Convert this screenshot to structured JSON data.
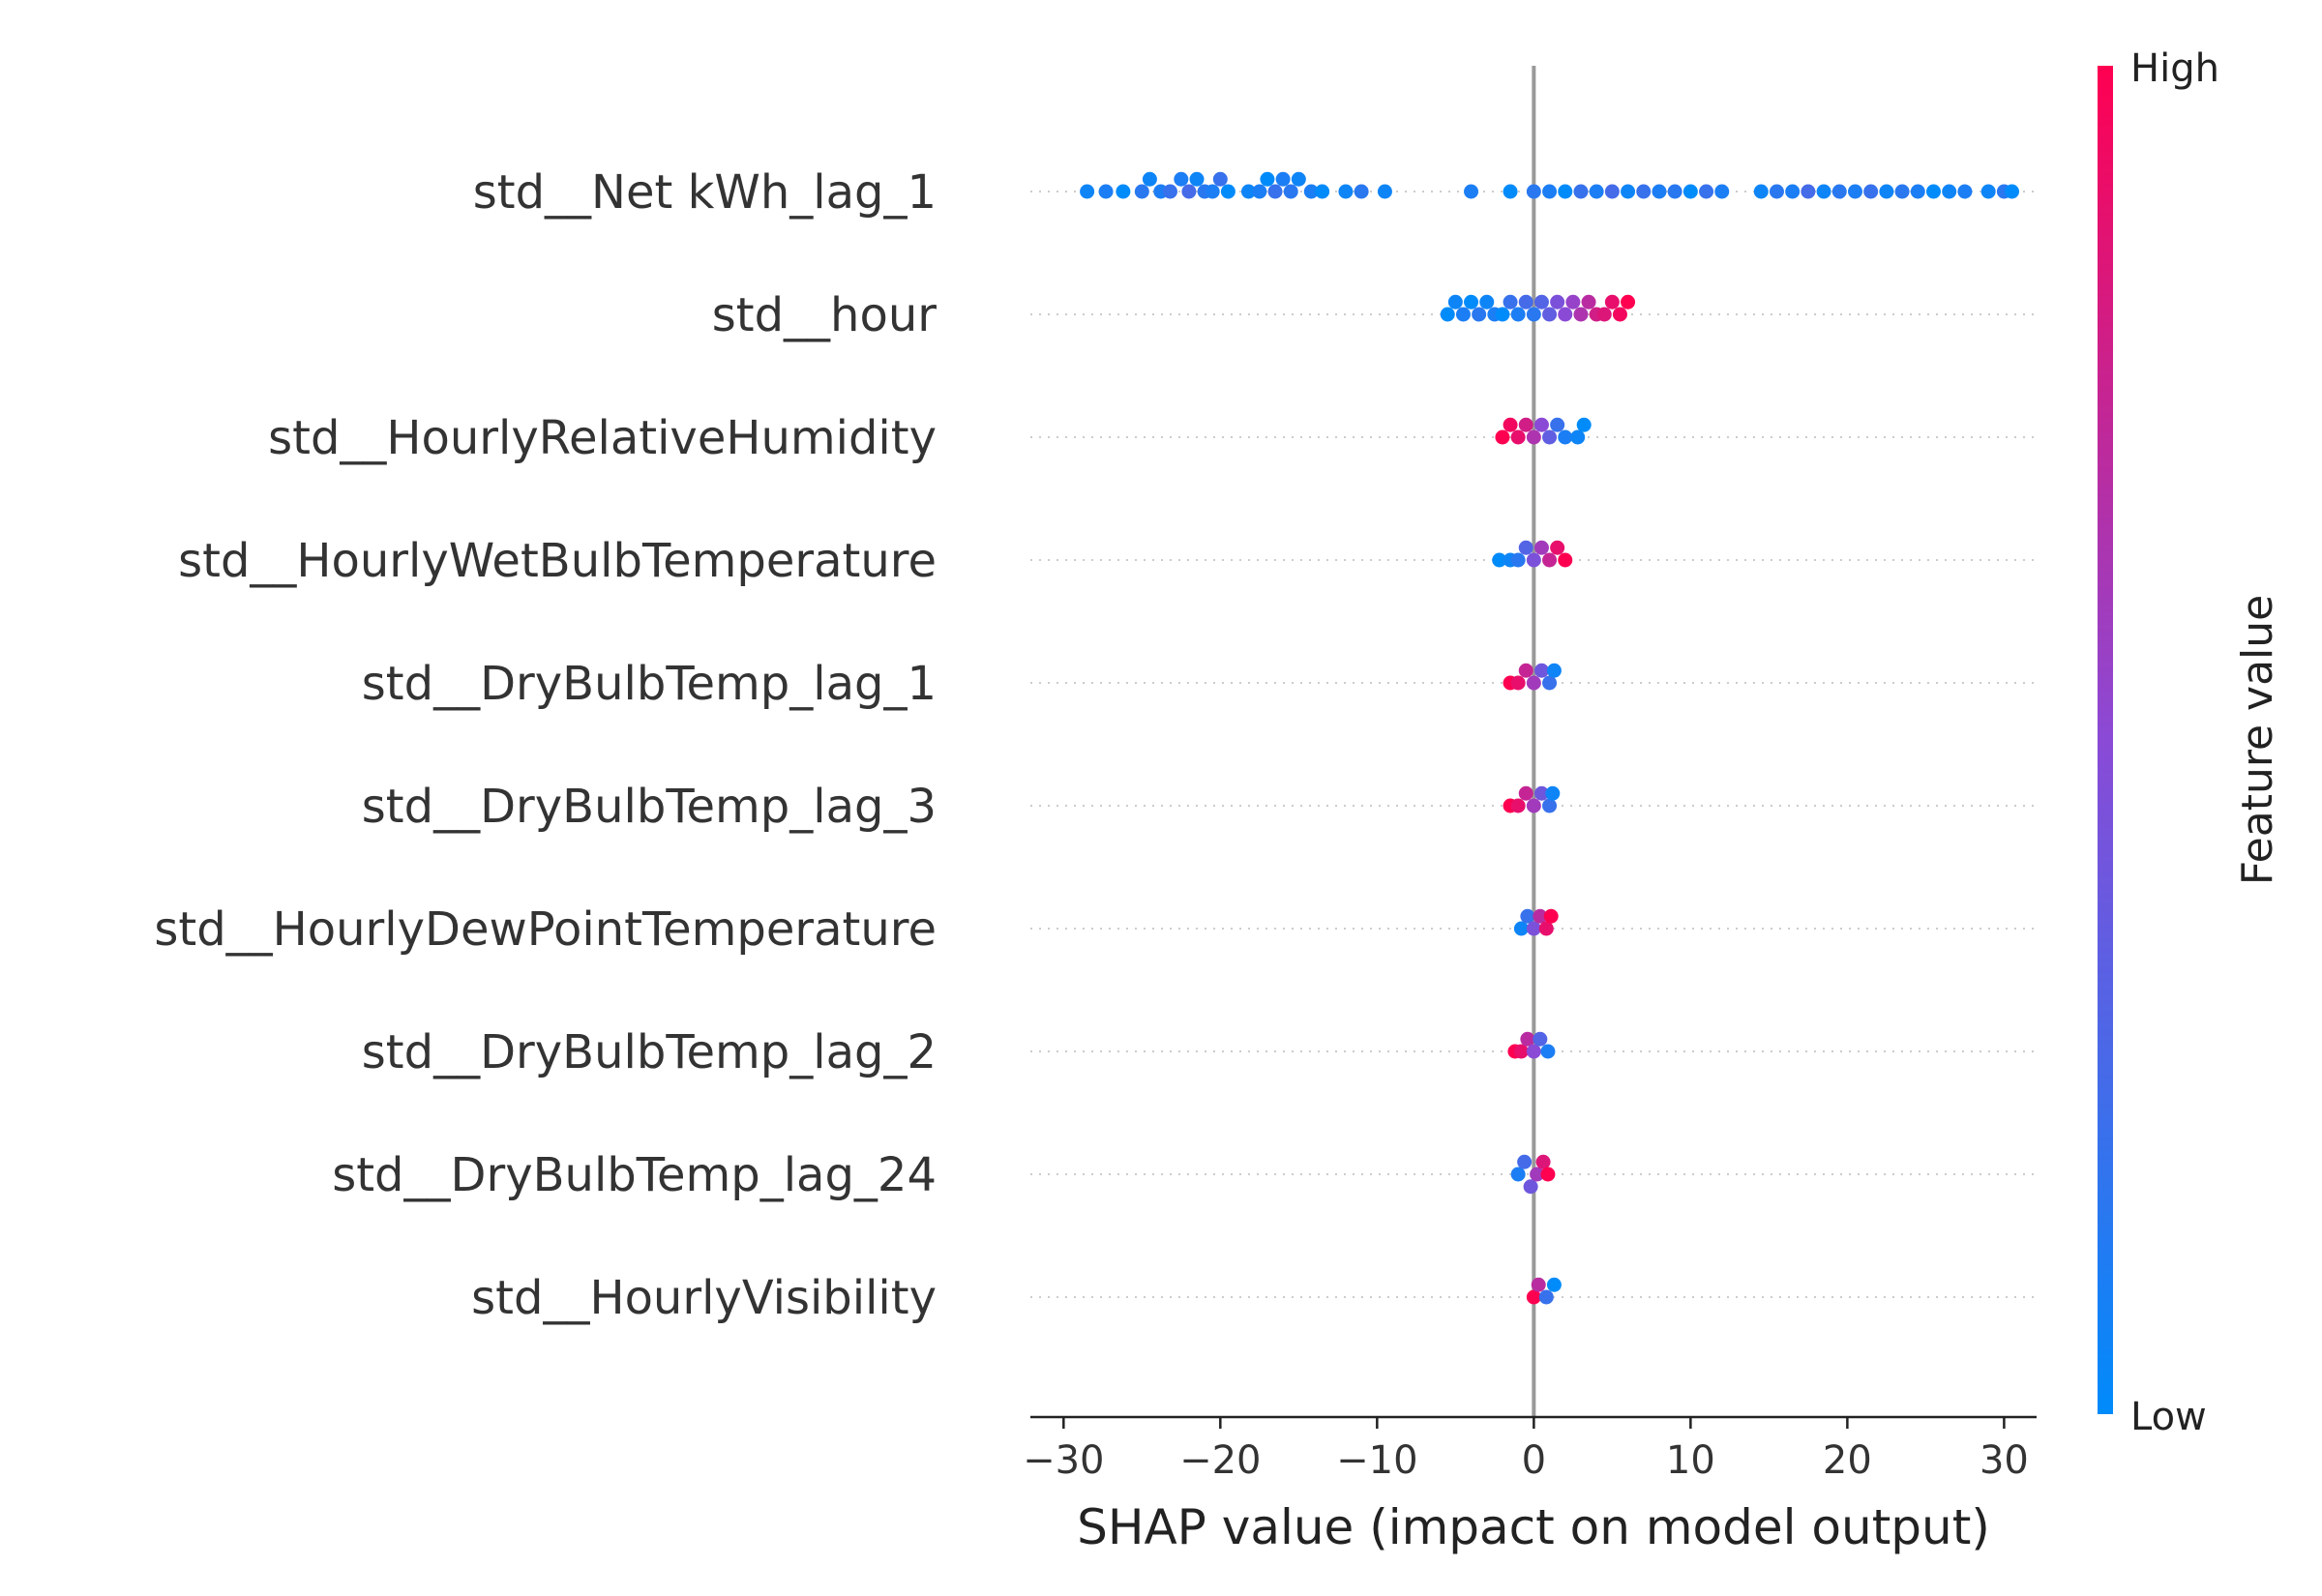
{
  "chart_data": {
    "type": "scatter",
    "subtype": "shap-beeswarm",
    "xlabel": "SHAP value (impact on model output)",
    "xlim": [
      -31.5,
      33
    ],
    "xticks": [
      -30,
      -20,
      -10,
      0,
      10,
      20,
      30
    ],
    "xtick_labels": [
      "−30",
      "−20",
      "−10",
      "0",
      "10",
      "20",
      "30"
    ],
    "colorbar": {
      "title": "Feature value",
      "high_label": "High",
      "low_label": "Low",
      "low_color": "#008bfb",
      "high_color": "#ff0051"
    },
    "zero_line_color": "#999999",
    "grid": "dotted horizontal guides per feature",
    "features": [
      {
        "name": "std__Net kWh_lag_1",
        "points": [
          [
            -28.5,
            0.05
          ],
          [
            -27.3,
            0.1
          ],
          [
            -26.2,
            0.0
          ],
          [
            -25.0,
            0.15
          ],
          [
            -24.5,
            0.05
          ],
          [
            -23.8,
            0.1
          ],
          [
            -23.2,
            0.2
          ],
          [
            -22.5,
            0.1
          ],
          [
            -22.0,
            0.25
          ],
          [
            -21.5,
            0.05
          ],
          [
            -21.0,
            0.15
          ],
          [
            -20.5,
            0.1
          ],
          [
            -20.0,
            0.2
          ],
          [
            -19.5,
            0.0
          ],
          [
            -18.2,
            0.05
          ],
          [
            -17.5,
            0.1
          ],
          [
            -17.0,
            0.0
          ],
          [
            -16.5,
            0.2
          ],
          [
            -16.0,
            0.1
          ],
          [
            -15.5,
            0.15
          ],
          [
            -15.0,
            0.05
          ],
          [
            -14.2,
            0.1
          ],
          [
            -13.5,
            0.0
          ],
          [
            -12.0,
            0.05
          ],
          [
            -11.0,
            0.15
          ],
          [
            -9.5,
            0.05
          ],
          [
            -4.0,
            0.1
          ],
          [
            -1.5,
            0.0
          ],
          [
            0.0,
            0.15
          ],
          [
            1.0,
            0.1
          ],
          [
            2.0,
            0.0
          ],
          [
            3.0,
            0.2
          ],
          [
            4.0,
            0.1
          ],
          [
            5.0,
            0.25
          ],
          [
            6.0,
            0.05
          ],
          [
            7.0,
            0.2
          ],
          [
            8.0,
            0.1
          ],
          [
            9.0,
            0.15
          ],
          [
            10.0,
            0.0
          ],
          [
            11.0,
            0.2
          ],
          [
            12.0,
            0.1
          ],
          [
            14.5,
            0.05
          ],
          [
            15.5,
            0.15
          ],
          [
            16.5,
            0.1
          ],
          [
            17.5,
            0.25
          ],
          [
            18.5,
            0.05
          ],
          [
            19.5,
            0.15
          ],
          [
            20.5,
            0.1
          ],
          [
            21.5,
            0.2
          ],
          [
            22.5,
            0.05
          ],
          [
            23.5,
            0.15
          ],
          [
            24.5,
            0.1
          ],
          [
            25.5,
            0.0
          ],
          [
            26.5,
            0.05
          ],
          [
            27.5,
            0.1
          ],
          [
            29.0,
            0.05
          ],
          [
            30.0,
            0.15
          ],
          [
            30.5,
            0.0
          ]
        ]
      },
      {
        "name": "std__hour",
        "points": [
          [
            -5.5,
            0.0
          ],
          [
            -5.0,
            0.05
          ],
          [
            -4.5,
            0.1
          ],
          [
            -4.0,
            0.0
          ],
          [
            -3.5,
            0.15
          ],
          [
            -3.0,
            0.05
          ],
          [
            -2.5,
            0.1
          ],
          [
            -2.0,
            0.0
          ],
          [
            -1.5,
            0.2
          ],
          [
            -1.0,
            0.1
          ],
          [
            -0.5,
            0.25
          ],
          [
            0.0,
            0.15
          ],
          [
            0.5,
            0.3
          ],
          [
            1.0,
            0.35
          ],
          [
            1.5,
            0.45
          ],
          [
            2.0,
            0.5
          ],
          [
            2.5,
            0.55
          ],
          [
            3.0,
            0.65
          ],
          [
            3.5,
            0.7
          ],
          [
            4.0,
            0.8
          ],
          [
            4.5,
            0.85
          ],
          [
            5.0,
            0.9
          ],
          [
            5.5,
            0.95
          ],
          [
            6.0,
            1.0
          ]
        ]
      },
      {
        "name": "std__HourlyRelativeHumidity",
        "points": [
          [
            -2.0,
            1.0
          ],
          [
            -1.5,
            0.95
          ],
          [
            -1.0,
            0.9
          ],
          [
            -0.5,
            0.8
          ],
          [
            0.0,
            0.65
          ],
          [
            0.5,
            0.5
          ],
          [
            1.0,
            0.35
          ],
          [
            1.5,
            0.2
          ],
          [
            2.0,
            0.1
          ],
          [
            2.8,
            0.05
          ],
          [
            3.2,
            0.0
          ]
        ]
      },
      {
        "name": "std__HourlyWetBulbTemperature",
        "points": [
          [
            -2.2,
            0.0
          ],
          [
            -1.5,
            0.05
          ],
          [
            -1.0,
            0.15
          ],
          [
            -0.5,
            0.3
          ],
          [
            0.0,
            0.45
          ],
          [
            0.5,
            0.6
          ],
          [
            1.0,
            0.75
          ],
          [
            1.5,
            0.9
          ],
          [
            2.0,
            1.0
          ]
        ]
      },
      {
        "name": "std__DryBulbTemp_lag_1",
        "points": [
          [
            -1.5,
            1.0
          ],
          [
            -1.0,
            0.9
          ],
          [
            -0.5,
            0.75
          ],
          [
            0.0,
            0.6
          ],
          [
            0.5,
            0.4
          ],
          [
            1.0,
            0.2
          ],
          [
            1.3,
            0.05
          ]
        ]
      },
      {
        "name": "std__DryBulbTemp_lag_3",
        "points": [
          [
            -1.5,
            1.0
          ],
          [
            -1.0,
            0.9
          ],
          [
            -0.5,
            0.75
          ],
          [
            0.0,
            0.6
          ],
          [
            0.5,
            0.4
          ],
          [
            1.0,
            0.2
          ],
          [
            1.2,
            0.05
          ]
        ]
      },
      {
        "name": "std__HourlyDewPointTemperature",
        "points": [
          [
            -0.8,
            0.05
          ],
          [
            -0.4,
            0.2
          ],
          [
            0.0,
            0.45
          ],
          [
            0.4,
            0.7
          ],
          [
            0.8,
            0.9
          ],
          [
            1.1,
            1.0
          ]
        ]
      },
      {
        "name": "std__DryBulbTemp_lag_2",
        "points": [
          [
            -1.2,
            1.0
          ],
          [
            -0.8,
            0.9
          ],
          [
            -0.4,
            0.7
          ],
          [
            0.0,
            0.5
          ],
          [
            0.4,
            0.3
          ],
          [
            0.9,
            0.1
          ]
        ]
      },
      {
        "name": "std__DryBulbTemp_lag_24",
        "points": [
          [
            -1.0,
            0.1
          ],
          [
            -0.6,
            0.25
          ],
          [
            -0.2,
            0.4
          ],
          [
            0.2,
            0.6
          ],
          [
            0.6,
            0.85
          ],
          [
            0.9,
            1.0
          ]
        ]
      },
      {
        "name": "std__HourlyVisibility",
        "points": [
          [
            0.0,
            1.0
          ],
          [
            0.3,
            0.7
          ],
          [
            0.8,
            0.2
          ],
          [
            1.3,
            0.0
          ]
        ]
      }
    ]
  }
}
